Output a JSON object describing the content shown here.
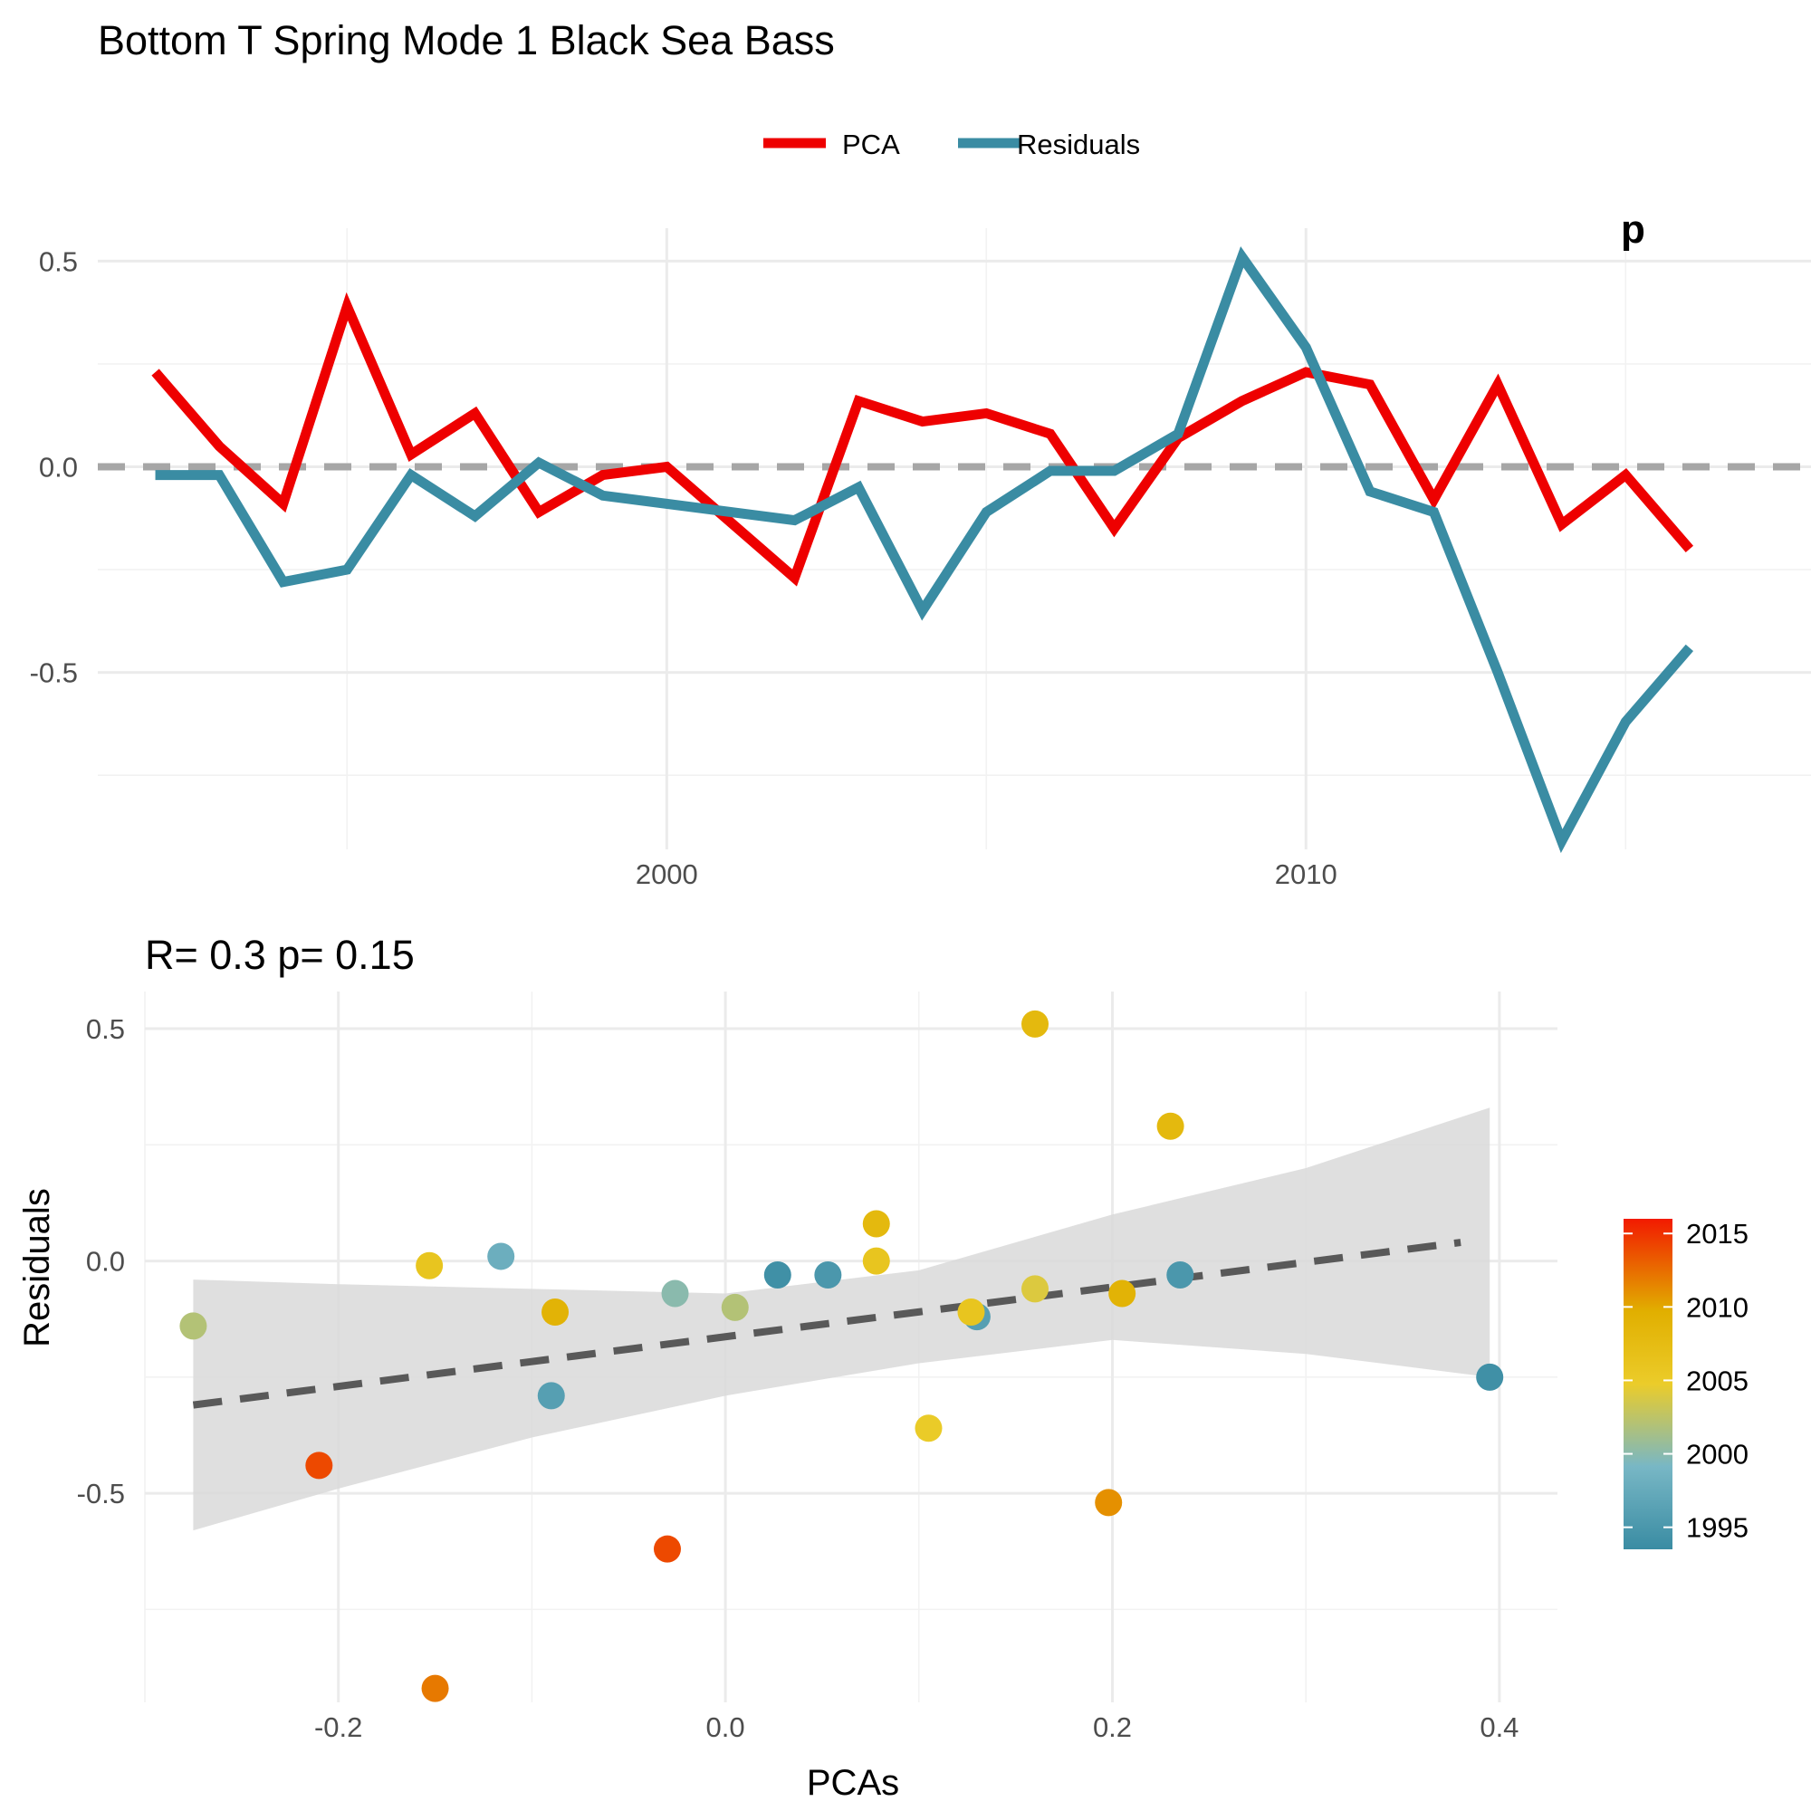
{
  "title": "Bottom T Spring Mode 1 Black Sea Bass",
  "colors": {
    "pca": "#ee0000",
    "residuals": "#3a8ca3",
    "zero_line": "#a6a6a6",
    "fit_line": "#595959",
    "ribbon": "#d9d9d9"
  },
  "chart_data": [
    {
      "type": "line",
      "legend": {
        "position": "top",
        "labels": [
          "PCA",
          "Residuals"
        ]
      },
      "x_ticks": [
        2000,
        2010
      ],
      "y_ticks": [
        "0.5",
        "0.0",
        "-0.5"
      ],
      "xlim": [
        1991.1,
        2017.9
      ],
      "ylim": [
        -0.93,
        0.58
      ],
      "corner_label_partial": "p",
      "years": [
        1992,
        1993,
        1994,
        1995,
        1996,
        1997,
        1998,
        1999,
        2000,
        2001,
        2002,
        2003,
        2004,
        2005,
        2006,
        2007,
        2008,
        2009,
        2010,
        2011,
        2012,
        2013,
        2014,
        2015,
        2016
      ],
      "series": [
        {
          "name": "PCA",
          "values": [
            0.23,
            0.05,
            -0.09,
            0.39,
            0.03,
            0.13,
            -0.11,
            -0.02,
            0.0,
            -0.27,
            0.16,
            0.11,
            0.13,
            0.08,
            -0.15,
            0.07,
            0.16,
            0.23,
            0.2,
            -0.08,
            0.2,
            -0.14,
            -0.02,
            -0.2
          ]
        },
        {
          "name": "Residuals",
          "values": [
            -0.02,
            -0.02,
            -0.28,
            -0.25,
            -0.02,
            -0.12,
            0.01,
            -0.07,
            -0.09,
            -0.13,
            -0.05,
            -0.35,
            -0.11,
            -0.01,
            -0.01,
            0.08,
            0.51,
            0.29,
            -0.06,
            -0.11,
            -0.5,
            -0.91,
            -0.62,
            -0.44
          ]
        }
      ],
      "series_x": [
        1992,
        1993,
        1994,
        1995,
        1996,
        1997,
        1998,
        1999,
        2000,
        2002,
        2003,
        2004,
        2005,
        2006,
        2007,
        2008,
        2009,
        2010,
        2011,
        2012,
        2013,
        2014,
        2015,
        2016
      ],
      "zero_line": 0
    },
    {
      "type": "scatter",
      "subtitle": "R= 0.3  p= 0.15",
      "xlabel": "PCAs",
      "ylabel": "Residuals",
      "x_ticks": [
        "-0.2",
        "0.0",
        "0.2",
        "0.4"
      ],
      "y_ticks": [
        "0.5",
        "0.0",
        "-0.5"
      ],
      "xlim": [
        -0.3,
        0.43
      ],
      "ylim": [
        -0.95,
        0.58
      ],
      "colorbar": {
        "ticks": [
          "2015",
          "2010",
          "2005",
          "2000",
          "1995"
        ],
        "range": [
          1993.5,
          2016
        ]
      },
      "points": [
        {
          "x": -0.275,
          "y": -0.14,
          "year": 2002
        },
        {
          "x": -0.21,
          "y": -0.44,
          "year": 2014
        },
        {
          "x": -0.153,
          "y": -0.01,
          "year": 2006
        },
        {
          "x": -0.15,
          "y": -0.92,
          "year": 2012
        },
        {
          "x": -0.116,
          "y": 0.01,
          "year": 1998
        },
        {
          "x": -0.09,
          "y": -0.29,
          "year": 1996
        },
        {
          "x": -0.088,
          "y": -0.11,
          "year": 2009
        },
        {
          "x": -0.03,
          "y": -0.62,
          "year": 2014
        },
        {
          "x": -0.026,
          "y": -0.07,
          "year": 2000
        },
        {
          "x": 0.005,
          "y": -0.1,
          "year": 2002
        },
        {
          "x": 0.027,
          "y": -0.03,
          "year": 1994
        },
        {
          "x": 0.053,
          "y": -0.03,
          "year": 1995
        },
        {
          "x": 0.078,
          "y": 0.08,
          "year": 2008
        },
        {
          "x": 0.078,
          "y": 0.0,
          "year": 2006
        },
        {
          "x": 0.105,
          "y": -0.36,
          "year": 2005
        },
        {
          "x": 0.13,
          "y": -0.12,
          "year": 1996
        },
        {
          "x": 0.127,
          "y": -0.11,
          "year": 2006
        },
        {
          "x": 0.16,
          "y": 0.51,
          "year": 2008
        },
        {
          "x": 0.16,
          "y": -0.06,
          "year": 2004
        },
        {
          "x": 0.198,
          "y": -0.52,
          "year": 2011
        },
        {
          "x": 0.205,
          "y": -0.07,
          "year": 2009
        },
        {
          "x": 0.23,
          "y": 0.29,
          "year": 2008
        },
        {
          "x": 0.235,
          "y": -0.03,
          "year": 1995
        },
        {
          "x": 0.395,
          "y": -0.25,
          "year": 1994
        }
      ],
      "fit": {
        "x": [
          -0.275,
          0.38
        ],
        "y": [
          -0.31,
          0.04
        ]
      },
      "ribbon": {
        "x": [
          -0.275,
          -0.2,
          -0.1,
          0.0,
          0.1,
          0.2,
          0.3,
          0.395
        ],
        "upper": [
          -0.04,
          -0.05,
          -0.06,
          -0.07,
          -0.02,
          0.1,
          0.2,
          0.33
        ],
        "lower": [
          -0.58,
          -0.49,
          -0.38,
          -0.29,
          -0.22,
          -0.17,
          -0.2,
          -0.25
        ]
      }
    }
  ]
}
